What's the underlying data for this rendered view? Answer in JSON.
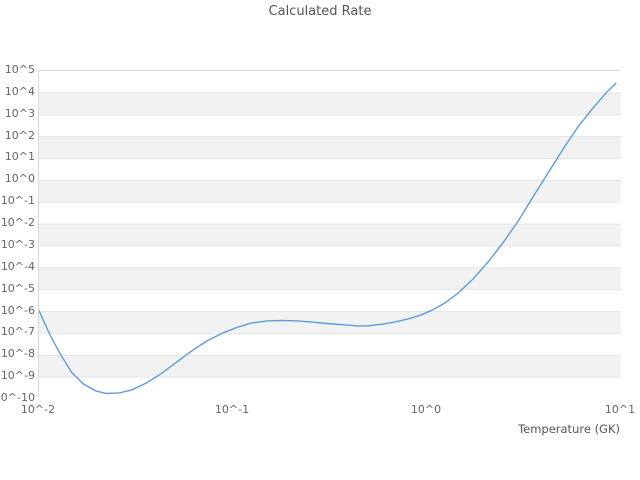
{
  "header": {
    "title": "Calculated Rate"
  },
  "axes": {
    "x_title": "Temperature (GK)",
    "x_ticks": [
      "10^-2",
      "10^-1",
      "10^0",
      "10^1"
    ],
    "y_ticks": [
      "10^5",
      "10^4",
      "10^3",
      "10^2",
      "10^1",
      "10^0",
      "10^-1",
      "10^-2",
      "10^-3",
      "10^-4",
      "10^-5",
      "10^-6",
      "10^-7",
      "10^-8",
      "10^-9",
      "10^-10"
    ]
  },
  "colors": {
    "line": "#5d9cdb",
    "band_gray": "#f2f2f2",
    "band_white": "#ffffff",
    "gridline": "#e5e5e5",
    "plot_border": "#d9d9d9",
    "title_text": "#555555",
    "tick_text": "#666666"
  },
  "chart_data": {
    "type": "line",
    "title": "Calculated Rate",
    "xlabel": "Temperature (GK)",
    "ylabel": "",
    "x_scale": "log",
    "y_scale": "log",
    "xlim": [
      0.01,
      10
    ],
    "ylim": [
      1e-10,
      100000.0
    ],
    "grid": "horizontal-bands-alternating",
    "legend_position": "none",
    "series": [
      {
        "name": "Calculated Rate",
        "color": "#5d9cdb",
        "x": [
          0.01,
          0.0113,
          0.0127,
          0.0147,
          0.0169,
          0.0197,
          0.0222,
          0.026,
          0.03,
          0.0358,
          0.0429,
          0.0513,
          0.0614,
          0.0733,
          0.0877,
          0.105,
          0.125,
          0.15,
          0.18,
          0.215,
          0.257,
          0.307,
          0.367,
          0.439,
          0.494,
          0.578,
          0.682,
          0.798,
          0.931,
          1.07,
          1.24,
          1.45,
          1.73,
          2.07,
          2.48,
          2.97,
          3.54,
          4.24,
          5.07,
          6.05,
          7.24,
          8.36,
          9.42
        ],
        "y": [
          1.1e-06,
          1e-07,
          1.4e-08,
          1.7e-09,
          4.9e-10,
          2.3e-10,
          1.8e-10,
          1.9e-10,
          2.6e-10,
          5.4e-10,
          1.5e-09,
          4.9e-09,
          1.6e-08,
          4.5e-08,
          1e-07,
          1.9e-07,
          3e-07,
          3.7e-07,
          3.9e-07,
          3.7e-07,
          3.3e-07,
          2.8e-07,
          2.5e-07,
          2.2e-07,
          2.2e-07,
          2.6e-07,
          3.3e-07,
          4.6e-07,
          6.9e-07,
          1.2e-06,
          2.5e-06,
          7.1e-06,
          3.1e-05,
          0.00019,
          0.0015,
          0.015,
          0.19,
          2.4,
          30,
          310,
          2240,
          9800,
          28000
        ]
      }
    ]
  }
}
